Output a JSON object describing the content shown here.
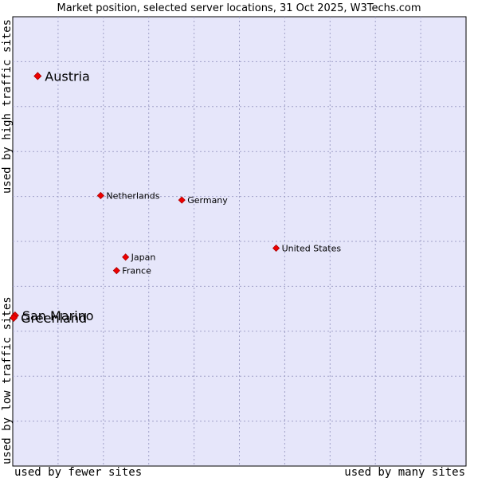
{
  "chart_data": {
    "type": "scatter",
    "title": "Market position, selected server locations, 31 Oct 2025, W3Techs.com",
    "xlabel_left": "used by fewer sites",
    "xlabel_right": "used by many sites",
    "ylabel_bottom": "used by low traffic sites",
    "ylabel_top": "used by high traffic sites",
    "xlim": [
      0,
      100
    ],
    "ylim": [
      0,
      100
    ],
    "grid": true,
    "points": [
      {
        "name": "Austria",
        "x": 5.5,
        "y": 86.8,
        "size": "large"
      },
      {
        "name": "Netherlands",
        "x": 19.4,
        "y": 60.2,
        "size": "small"
      },
      {
        "name": "Germany",
        "x": 37.3,
        "y": 59.2,
        "size": "small"
      },
      {
        "name": "United States",
        "x": 58.1,
        "y": 48.5,
        "size": "small"
      },
      {
        "name": "Japan",
        "x": 24.9,
        "y": 46.5,
        "size": "small"
      },
      {
        "name": "France",
        "x": 22.9,
        "y": 43.5,
        "size": "small"
      },
      {
        "name": "San Marino",
        "x": 0.5,
        "y": 33.5,
        "size": "large"
      },
      {
        "name": "Greenland",
        "x": 0.2,
        "y": 33.0,
        "size": "large"
      }
    ]
  },
  "colors": {
    "plot_bg": "#e6e6fa",
    "border": "#000000",
    "grid": "#a0a0c8",
    "point": "#ee0000",
    "text": "#000000"
  }
}
